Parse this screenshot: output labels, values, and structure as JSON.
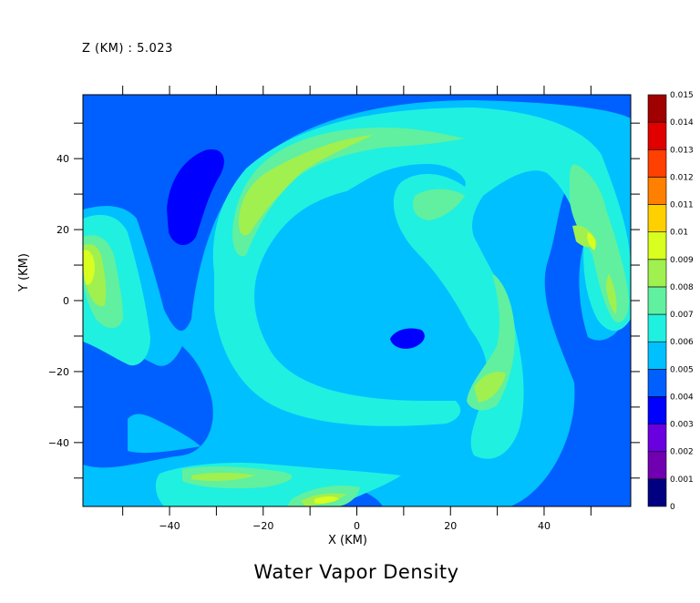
{
  "chart_data": {
    "type": "heatmap",
    "title": "Water Vapor Density",
    "subtitle": "Z (KM) : 5.023",
    "xlabel": "X (KM)",
    "ylabel": "Y (KM)",
    "xlim": [
      -58.5,
      58.5
    ],
    "ylim": [
      -58,
      58
    ],
    "x_ticks": [
      -40,
      -20,
      0,
      20,
      40
    ],
    "y_ticks": [
      -40,
      -20,
      0,
      20,
      40
    ],
    "x_tick_labels": [
      "−40",
      "−20",
      "0",
      "20",
      "40"
    ],
    "y_tick_labels": [
      "−40",
      "−20",
      "0",
      "20",
      "40"
    ],
    "colorbar": {
      "levels": [
        0,
        0.001,
        0.002,
        0.003,
        0.004,
        0.005,
        0.006,
        0.007,
        0.008,
        0.009,
        0.01,
        0.011,
        0.012,
        0.013,
        0.014,
        0.015
      ],
      "labels": [
        "0",
        "0.001",
        "0.002",
        "0.003",
        "0.004",
        "0.005",
        "0.006",
        "0.007",
        "0.008",
        "0.009",
        "0.01",
        "0.011",
        "0.012",
        "0.013",
        "0.014",
        "0.015"
      ],
      "colors": [
        "#000080",
        "#7000b0",
        "#6a00e0",
        "#0000ff",
        "#0060ff",
        "#00c0ff",
        "#20f0e0",
        "#60f0a0",
        "#a0f050",
        "#d8ff20",
        "#ffd000",
        "#ff8000",
        "#ff4000",
        "#e00000",
        "#a00000"
      ]
    },
    "fields": [
      {
        "level": 0.0045,
        "shape": "background"
      },
      {
        "level": 0.0055,
        "feature": "outer spiral band"
      },
      {
        "level": 0.0065,
        "feature": "inner spiral band"
      },
      {
        "level": 0.0075,
        "feature": "spiral maxima"
      },
      {
        "level": 0.0085,
        "feature": "local maxima"
      },
      {
        "level": 0.0095,
        "feature": "peak cells"
      },
      {
        "level": 0.0035,
        "feature": "dry cells"
      }
    ]
  }
}
